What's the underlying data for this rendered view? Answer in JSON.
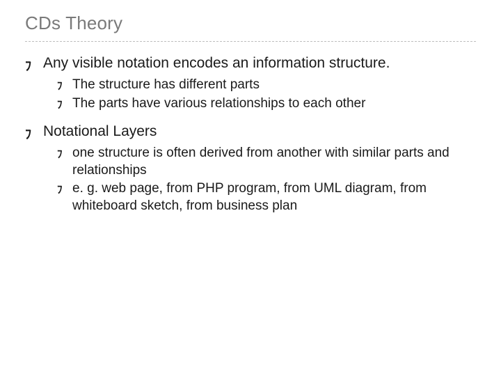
{
  "title": "CDs Theory",
  "title_color": "#7a7a7a",
  "title_fontsize": 26,
  "divider_color": "#bdbdbd",
  "body_color": "#1a1a1a",
  "lvl1_fontsize": 21,
  "lvl2_fontsize": 19,
  "bullet_glyph": "ﾌ",
  "items": [
    {
      "text": "Any visible notation encodes an information structure.",
      "sub": [
        {
          "text": "The structure has different parts"
        },
        {
          "text": "The parts have various relationships to each other"
        }
      ]
    },
    {
      "text": "Notational Layers",
      "sub": [
        {
          "text": "one structure is often derived from another with similar parts and relationships"
        },
        {
          "text": "e. g. web page, from PHP program, from UML diagram, from whiteboard sketch, from business plan"
        }
      ]
    }
  ]
}
